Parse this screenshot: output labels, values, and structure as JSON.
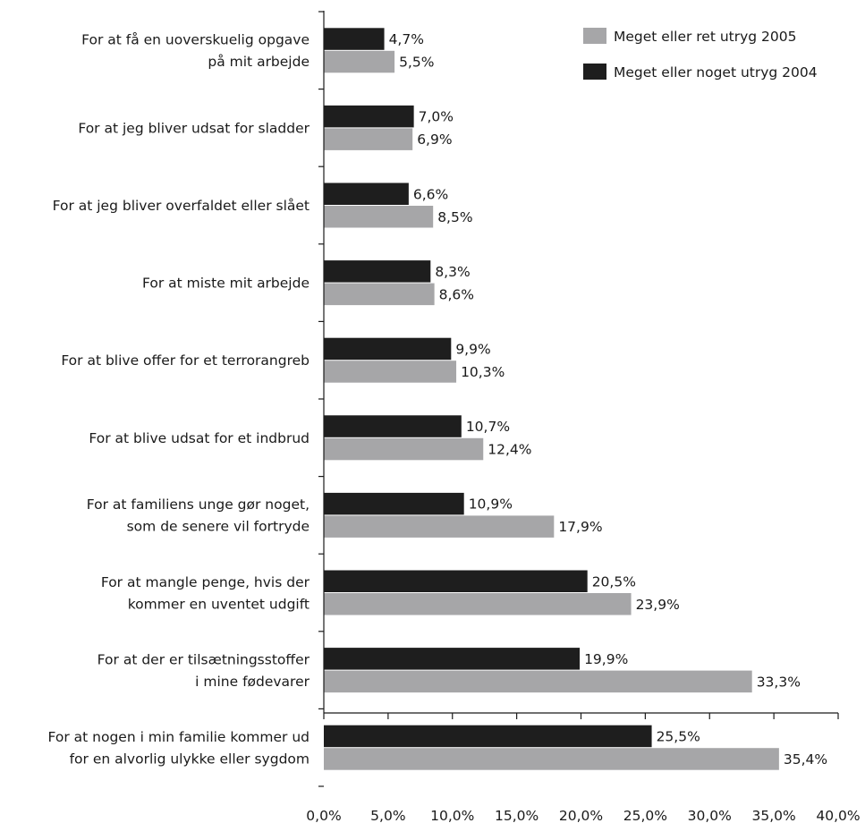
{
  "chart_data": {
    "type": "bar",
    "orientation": "horizontal",
    "categories": [
      [
        "For at få en uoverskuelig opgave",
        "på mit arbejde"
      ],
      [
        "For at jeg bliver udsat for sladder"
      ],
      [
        "For at jeg bliver overfaldet eller slået"
      ],
      [
        "For at miste mit arbejde"
      ],
      [
        "For at blive offer for et terrorangreb"
      ],
      [
        "For at blive udsat for et indbrud"
      ],
      [
        "For at familiens unge gør noget,",
        "som de senere vil fortryde"
      ],
      [
        "For at mangle penge, hvis der",
        "kommer en uventet udgift"
      ],
      [
        "For at der er tilsætningsstoffer",
        "i mine fødevarer"
      ],
      [
        "For at nogen i min familie kommer ud",
        "for en alvorlig ulykke eller sygdom"
      ]
    ],
    "series": [
      {
        "name": "Meget eller noget utryg 2004",
        "color": "#1e1e1e",
        "values": [
          4.7,
          7.0,
          6.6,
          8.3,
          9.9,
          10.7,
          10.9,
          20.5,
          19.9,
          25.5
        ],
        "labels": [
          "4,7%",
          "7,0%",
          "6,6%",
          "8,3%",
          "9,9%",
          "10,7%",
          "10,9%",
          "20,5%",
          "19,9%",
          "25,5%"
        ]
      },
      {
        "name": "Meget eller ret utryg 2005",
        "color": "#a6a6a8",
        "values": [
          5.5,
          6.9,
          8.5,
          8.6,
          10.3,
          12.4,
          17.9,
          23.9,
          33.3,
          35.4
        ],
        "labels": [
          "5,5%",
          "6,9%",
          "8,5%",
          "8,6%",
          "10,3%",
          "12,4%",
          "17,9%",
          "23,9%",
          "33,3%",
          "35,4%"
        ]
      }
    ],
    "legend": {
      "position": "top-right",
      "order": [
        "Meget eller ret utryg 2005",
        "Meget eller noget utryg 2004"
      ]
    },
    "xlim": [
      0,
      40
    ],
    "xticks": [
      0,
      5,
      10,
      15,
      20,
      25,
      30,
      35,
      40
    ],
    "xtick_labels": [
      "0,0%",
      "5,0%",
      "10,0%",
      "15,0%",
      "20,0%",
      "25,0%",
      "30,0%",
      "35,0%",
      "40,0%"
    ],
    "grid": false,
    "title": "",
    "xlabel": "",
    "ylabel": ""
  }
}
